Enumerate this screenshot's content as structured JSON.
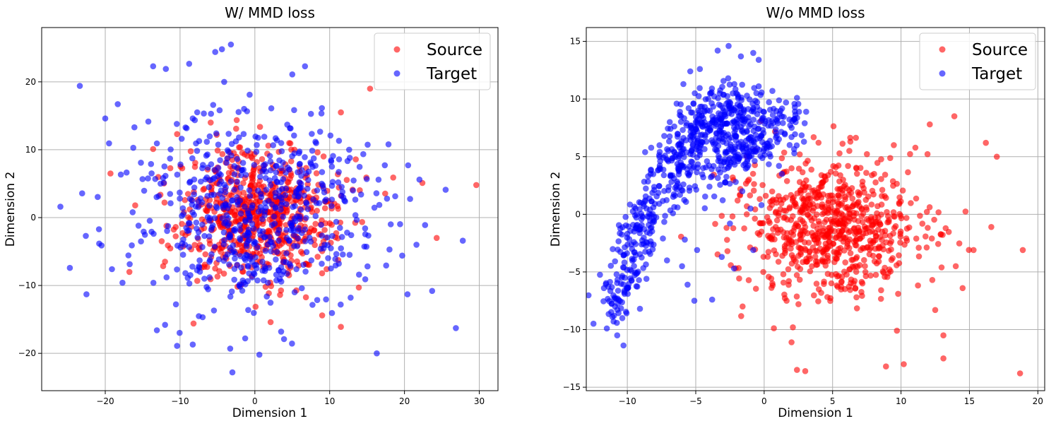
{
  "chart_data": [
    {
      "type": "scatter",
      "title": "W/ MMD loss",
      "xlabel": "Dimension 1",
      "ylabel": "Dimension 2",
      "xlim": [
        -28.5,
        32.5
      ],
      "ylim": [
        -25.5,
        28
      ],
      "xticks": [
        -20,
        -10,
        0,
        10,
        20,
        30
      ],
      "yticks": [
        -20,
        -10,
        0,
        10,
        20
      ],
      "grid": true,
      "legend_position": "top-right",
      "series": [
        {
          "name": "Source",
          "color": "#ff0000",
          "distribution": {
            "center": [
              0.5,
              0.5
            ],
            "spread": [
              5.3,
              4.6
            ],
            "count": 650
          },
          "points": [
            [
              29.6,
              4.8
            ],
            [
              24.3,
              -3.0
            ],
            [
              22.4,
              5.1
            ],
            [
              18.5,
              5.9
            ],
            [
              15.4,
              19.0
            ],
            [
              14.9,
              5.9
            ],
            [
              11.5,
              -16.1
            ],
            [
              11.5,
              15.5
            ],
            [
              -19.3,
              6.5
            ],
            [
              -16.0,
              1.8
            ],
            [
              -13.6,
              10.1
            ],
            [
              -10.4,
              12.3
            ],
            [
              -8.2,
              -15.6
            ],
            [
              -5.1,
              12.2
            ],
            [
              2.1,
              -15.4
            ],
            [
              9.0,
              -14.4
            ],
            [
              13.9,
              -10.3
            ],
            [
              -5.9,
              14.0
            ],
            [
              5.3,
              10.0
            ],
            [
              -2.5,
              13.1
            ]
          ]
        },
        {
          "name": "Target",
          "color": "#0000ff",
          "distribution": {
            "center": [
              0.0,
              0.8
            ],
            "spread": [
              8.0,
              6.9
            ],
            "count": 600
          },
          "points": [
            [
              -26.0,
              1.6
            ],
            [
              -23.4,
              19.4
            ],
            [
              -20.0,
              14.6
            ],
            [
              -22.6,
              -2.7
            ],
            [
              -13.6,
              22.3
            ],
            [
              -11.9,
              21.9
            ],
            [
              -5.3,
              24.4
            ],
            [
              -4.4,
              24.8
            ],
            [
              -3.2,
              25.5
            ],
            [
              -4.1,
              20.0
            ],
            [
              5.0,
              21.1
            ],
            [
              6.7,
              22.3
            ],
            [
              -3.0,
              -22.8
            ],
            [
              -3.3,
              -19.3
            ],
            [
              -1.3,
              -17.8
            ],
            [
              3.9,
              -17.9
            ],
            [
              16.3,
              -20.0
            ],
            [
              23.7,
              -10.8
            ],
            [
              27.8,
              -3.4
            ],
            [
              25.5,
              4.1
            ],
            [
              22.0,
              5.6
            ],
            [
              20.4,
              -11.3
            ],
            [
              -10.4,
              -18.9
            ],
            [
              -8.3,
              -18.7
            ],
            [
              -13.1,
              -16.6
            ],
            [
              -12.0,
              -15.8
            ],
            [
              -17.7,
              -9.6
            ],
            [
              -19.1,
              -7.6
            ],
            [
              -16.1,
              13.3
            ],
            [
              -8.3,
              14.6
            ],
            [
              10.1,
              12.1
            ],
            [
              12.6,
              10.0
            ],
            [
              14.2,
              3.4
            ],
            [
              18.0,
              -4.7
            ],
            [
              19.7,
              -5.6
            ],
            [
              21.6,
              -4.0
            ],
            [
              -20.5,
              -4.1
            ],
            [
              -0.7,
              18.1
            ],
            [
              2.2,
              16.1
            ],
            [
              0.6,
              -20.2
            ]
          ]
        }
      ]
    },
    {
      "type": "scatter",
      "title": "W/o MMD loss",
      "xlabel": "Dimension 1",
      "ylabel": "Dimension 2",
      "xlim": [
        -13,
        20.5
      ],
      "ylim": [
        -15.3,
        16.2
      ],
      "xticks": [
        -10,
        -5,
        0,
        5,
        10,
        15,
        20
      ],
      "yticks": [
        -15,
        -10,
        -5,
        0,
        5,
        10,
        15
      ],
      "grid": true,
      "legend_position": "top-right",
      "series": [
        {
          "name": "Source",
          "color": "#ff0000",
          "distribution": {
            "center": [
              5.0,
              -1.0
            ],
            "spread": [
              3.3,
              3.0
            ],
            "count": 750
          },
          "points": [
            [
              18.7,
              -13.8
            ],
            [
              18.9,
              -3.1
            ],
            [
              16.2,
              6.2
            ],
            [
              17.0,
              5.0
            ],
            [
              16.6,
              -1.1
            ],
            [
              15.3,
              -3.1
            ],
            [
              13.9,
              8.5
            ],
            [
              14.0,
              -4.5
            ],
            [
              13.1,
              -12.5
            ],
            [
              13.1,
              -10.5
            ],
            [
              10.2,
              -13.0
            ],
            [
              8.9,
              -13.2
            ],
            [
              3.0,
              -13.6
            ],
            [
              2.4,
              -13.5
            ],
            [
              2.1,
              -9.8
            ],
            [
              2.0,
              -11.1
            ],
            [
              12.5,
              -8.3
            ],
            [
              14.5,
              -6.4
            ],
            [
              12.1,
              7.8
            ],
            [
              6.3,
              6.3
            ],
            [
              2.6,
              5.2
            ],
            [
              0.6,
              -6.0
            ],
            [
              -0.2,
              -1.5
            ],
            [
              0.9,
              1.0
            ],
            [
              9.7,
              -10.1
            ]
          ]
        },
        {
          "name": "Target",
          "color": "#0000ff",
          "distribution": {
            "shape": "arch",
            "count": 600
          },
          "points": [
            [
              -11.5,
              -9.9
            ],
            [
              -11.0,
              -9.3
            ],
            [
              -10.9,
              -8.0
            ],
            [
              -10.2,
              -6.9
            ],
            [
              -9.8,
              -4.8
            ],
            [
              -9.5,
              -3.3
            ],
            [
              -8.3,
              -1.2
            ],
            [
              -8.6,
              0.5
            ],
            [
              -7.4,
              -2.1
            ],
            [
              -7.1,
              -4.0
            ],
            [
              -6.0,
              -4.5
            ],
            [
              -5.6,
              -6.1
            ],
            [
              -5.1,
              -7.5
            ],
            [
              -3.8,
              -7.4
            ],
            [
              -2.2,
              -4.7
            ],
            [
              -0.8,
              -3.1
            ],
            [
              -1.0,
              0.5
            ],
            [
              -1.6,
              2.0
            ],
            [
              -0.2,
              0.8
            ],
            [
              1.3,
              3.5
            ],
            [
              2.2,
              5.3
            ],
            [
              2.3,
              8.0
            ],
            [
              1.6,
              9.7
            ],
            [
              2.4,
              10.1
            ],
            [
              0.6,
              10.7
            ],
            [
              -0.4,
              11.1
            ],
            [
              -0.8,
              9.1
            ],
            [
              -0.2,
              6.8
            ],
            [
              -0.4,
              13.4
            ],
            [
              -0.8,
              14.0
            ],
            [
              -1.7,
              13.7
            ],
            [
              -2.6,
              14.6
            ],
            [
              -3.4,
              14.2
            ],
            [
              -4.7,
              12.6
            ],
            [
              -5.4,
              12.4
            ],
            [
              -5.9,
              11.3
            ],
            [
              -6.4,
              9.6
            ],
            [
              -6.9,
              8.0
            ],
            [
              -7.3,
              6.8
            ],
            [
              -7.0,
              4.6
            ],
            [
              -8.3,
              3.5
            ],
            [
              -9.4,
              0.5
            ],
            [
              -10.0,
              -1.7
            ],
            [
              -8.6,
              -5.6
            ],
            [
              -5.8,
              -2.2
            ],
            [
              -4.9,
              -3.1
            ],
            [
              -3.1,
              -3.7
            ],
            [
              -2.5,
              -0.8
            ],
            [
              -4.0,
              2.4
            ],
            [
              -3.2,
              4.6
            ]
          ]
        }
      ]
    }
  ]
}
